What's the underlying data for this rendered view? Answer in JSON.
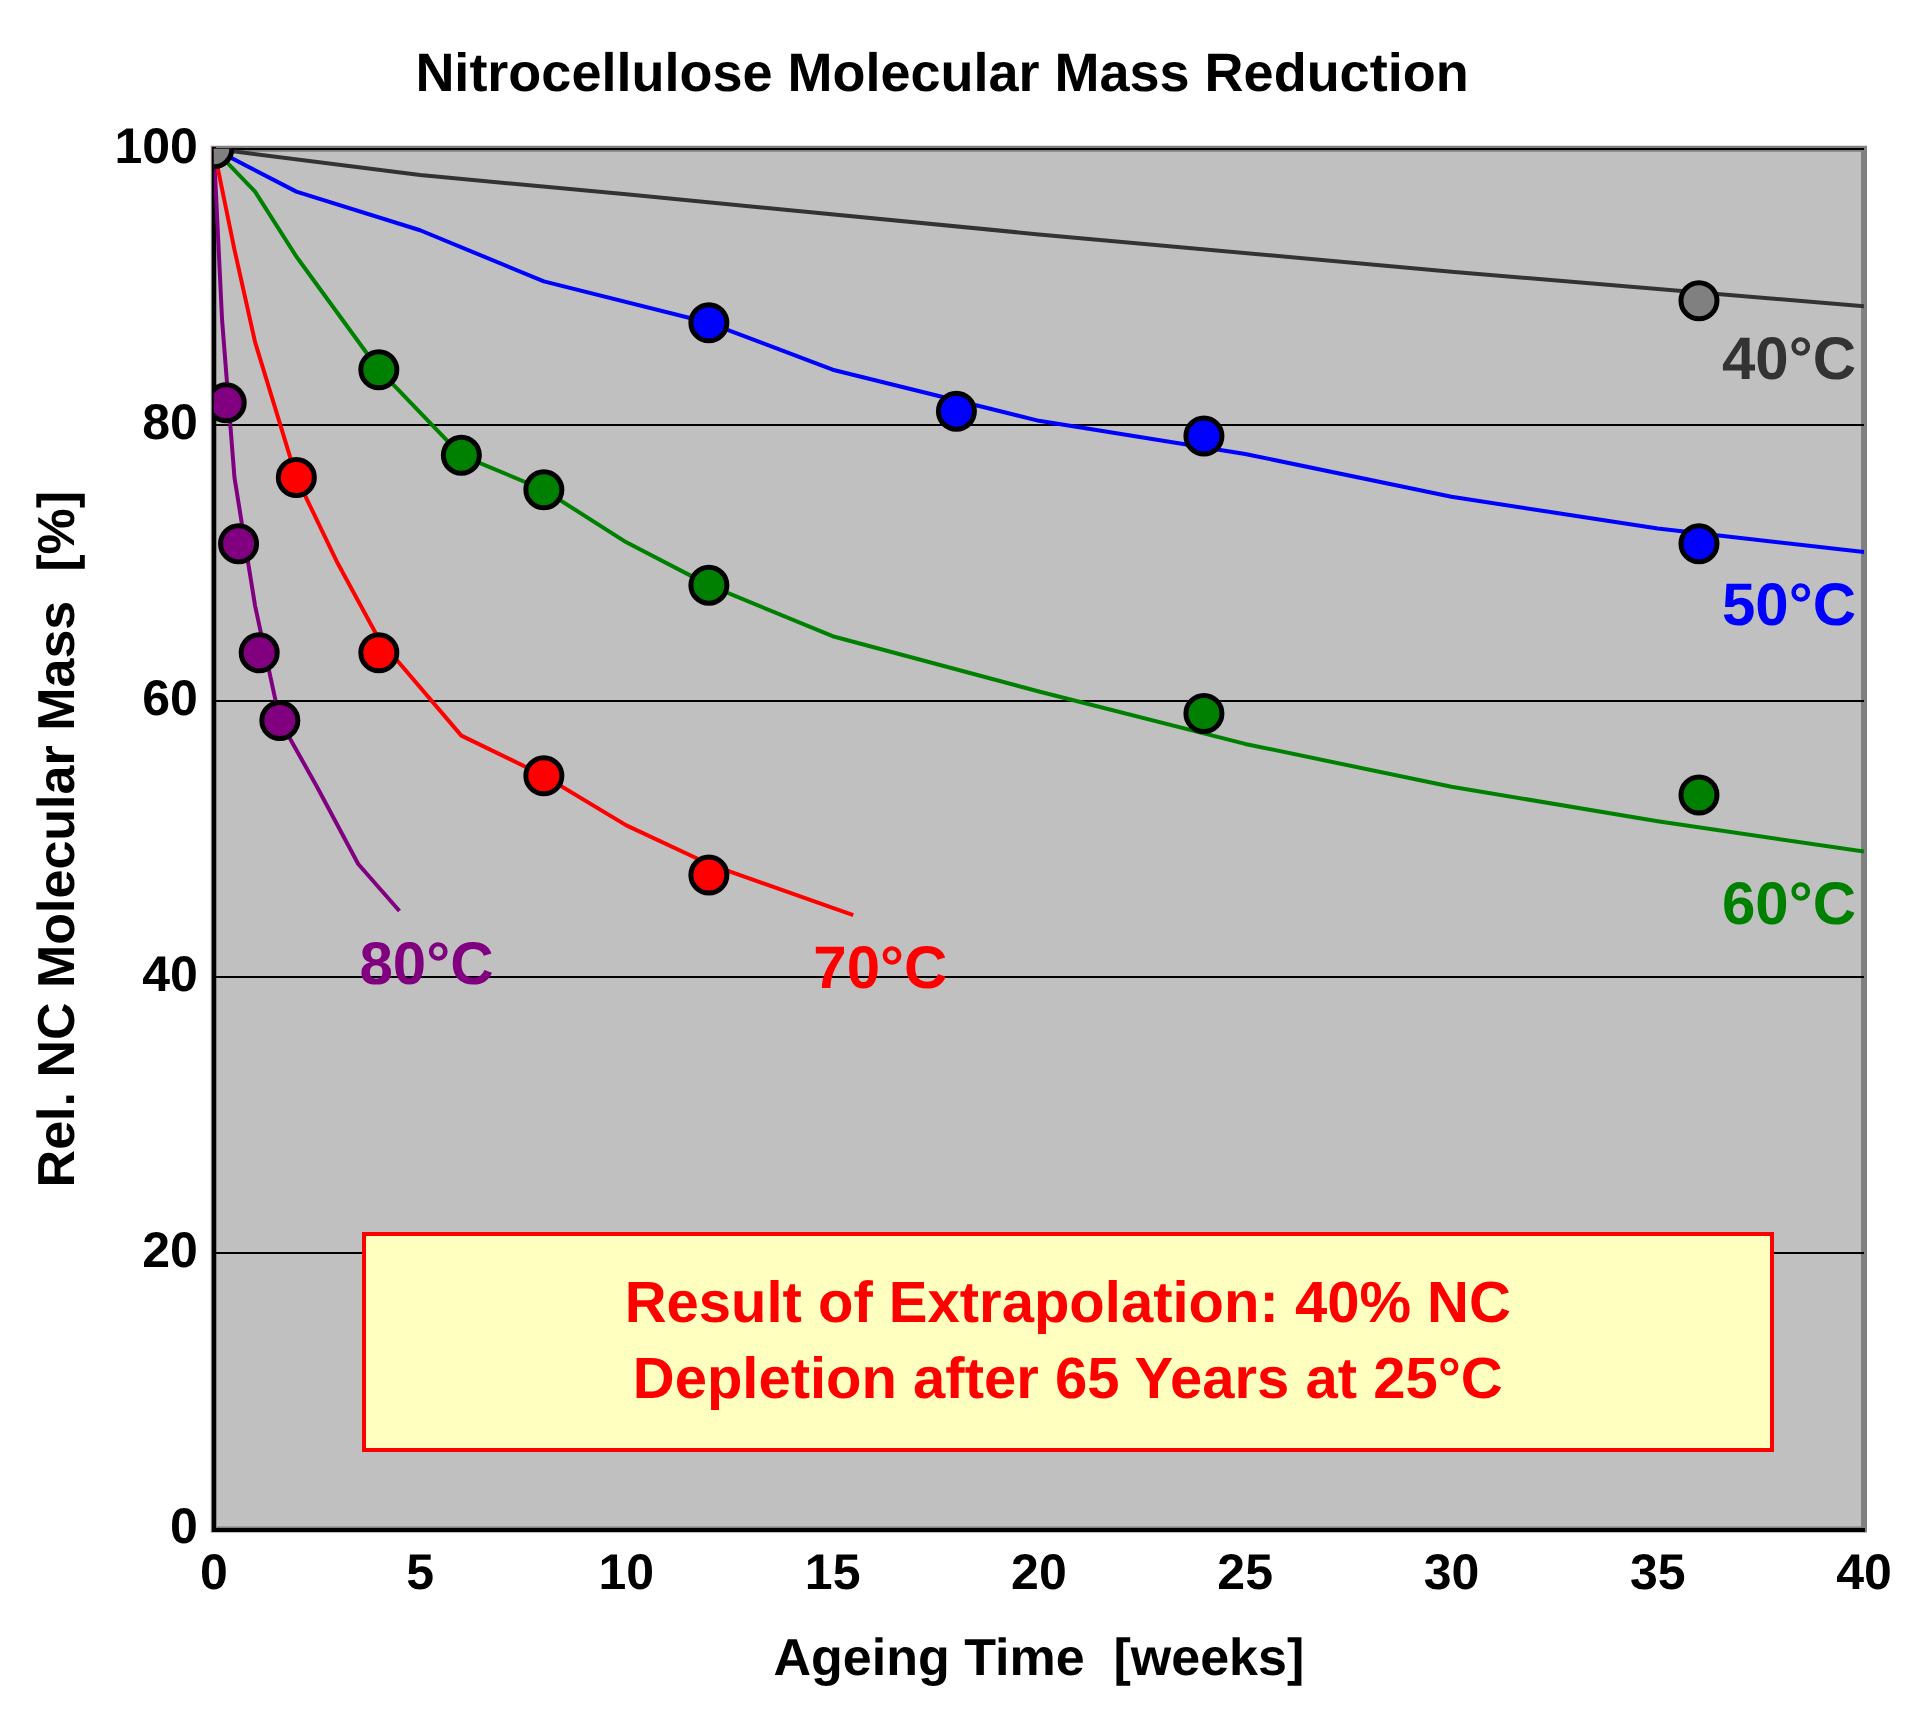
{
  "chart_data": {
    "type": "line",
    "title": "Nitrocellulose Molecular Mass Reduction",
    "xlabel": "Ageing Time  [weeks]",
    "ylabel": "Rel. NC Molecular Mass  [%]",
    "xlim": [
      0,
      40
    ],
    "xticks": [
      0,
      5,
      10,
      15,
      20,
      25,
      30,
      35,
      40
    ],
    "ylim": [
      0,
      100
    ],
    "yticks": [
      0,
      20,
      40,
      60,
      80,
      100
    ],
    "grid": "y",
    "legend": false,
    "annotations": [
      "Result of Extrapolation: 40% NC\nDepletion after 65 Years at 25°C"
    ],
    "series": [
      {
        "name": "40°C",
        "marker": "none",
        "color": "#333333",
        "x": [
          0,
          5,
          10,
          20,
          30,
          40
        ],
        "values": [
          100,
          98.1,
          96.7,
          93.8,
          91.1,
          88.6
        ]
      },
      {
        "name": "50°C",
        "marker": "none",
        "color": "#0000ff",
        "x": [
          0,
          2,
          5,
          8,
          12,
          15,
          20,
          25,
          30,
          35,
          40
        ],
        "values": [
          100,
          96.9,
          94.1,
          90.4,
          87.4,
          84.0,
          80.3,
          77.9,
          74.8,
          72.5,
          70.8
        ]
      },
      {
        "name": "60°C",
        "marker": "none",
        "color": "#008000",
        "x": [
          0,
          1,
          2,
          4,
          6,
          8,
          10,
          12,
          15,
          20,
          25,
          30,
          35,
          40
        ],
        "values": [
          100,
          96.9,
          92.2,
          84,
          77.8,
          75.3,
          71.5,
          68.4,
          64.7,
          60.7,
          56.9,
          53.8,
          51.3,
          49.1
        ]
      },
      {
        "name": "70°C",
        "marker": "none",
        "color": "#ff0000",
        "x": [
          0,
          0.5,
          1,
          2,
          3,
          4,
          6,
          8,
          10,
          12,
          15.5
        ],
        "values": [
          100,
          92.7,
          86,
          76.2,
          70,
          64.5,
          57.5,
          54.6,
          51,
          48.2,
          44.5
        ]
      },
      {
        "name": "80°C",
        "marker": "none",
        "color": "#800080",
        "x": [
          0,
          0.2,
          0.5,
          1,
          1.6,
          2.5,
          3.5,
          4.5
        ],
        "values": [
          100,
          87.6,
          76.2,
          66.9,
          58.6,
          53.8,
          48.2,
          44.8
        ]
      },
      {
        "type": "scatter",
        "marker": "circle",
        "color": "#808080",
        "x": [
          0,
          36
        ],
        "values": [
          100,
          89.0
        ]
      },
      {
        "type": "scatter",
        "marker": "circle",
        "color": "#0000ff",
        "x": [
          12,
          18,
          24,
          36
        ],
        "values": [
          87.4,
          81.0,
          79.2,
          71.4
        ]
      },
      {
        "type": "scatter",
        "marker": "circle",
        "color": "#008000",
        "x": [
          4,
          6,
          8,
          12,
          24,
          36
        ],
        "values": [
          84.0,
          77.8,
          75.3,
          68.4,
          59.1,
          53.2
        ]
      },
      {
        "type": "scatter",
        "marker": "circle",
        "color": "#ff0000",
        "x": [
          2,
          4,
          8,
          12
        ],
        "values": [
          76.2,
          63.5,
          54.6,
          47.4
        ]
      },
      {
        "type": "scatter",
        "marker": "circle",
        "color": "#800080",
        "x": [
          0.3,
          0.6,
          1.1,
          1.6
        ],
        "values": [
          81.6,
          71.4,
          63.5,
          58.6
        ]
      }
    ]
  }
}
